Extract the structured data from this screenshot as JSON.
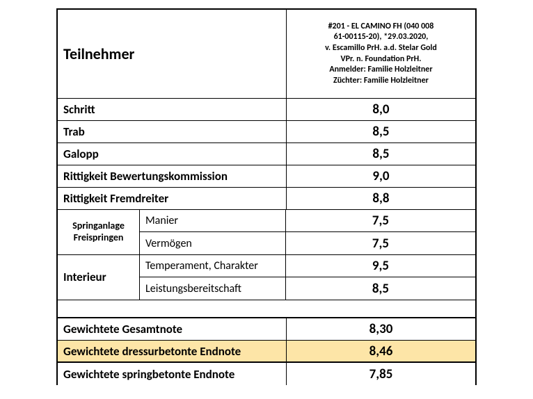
{
  "header": {
    "left": "Teilnehmer",
    "right_lines": [
      "#201 -  EL  CAMINO FH (040 008",
      "61-00115-20), *29.03.2020,",
      "v. Escamillo PrH. a.d. Stelar Gold",
      "VPr. n. Foundation PrH.",
      "Anmelder: Familie Holzleitner",
      "Züchter: Familie Holzleitner"
    ]
  },
  "rows": [
    {
      "label": "Schritt",
      "value": "8,0"
    },
    {
      "label": "Trab",
      "value": "8,5"
    },
    {
      "label": "Galopp",
      "value": "8,5"
    },
    {
      "label": "Rittigkeit Bewertungskommission",
      "value": "9,0"
    },
    {
      "label": "Rittigkeit Fremdreiter",
      "value": "8,8"
    }
  ],
  "groups": [
    {
      "label_lines": [
        "Springanlage",
        "Freispringen"
      ],
      "subs": [
        {
          "label": "Manier",
          "value": "7,5"
        },
        {
          "label": "Vermögen",
          "value": "7,5"
        }
      ]
    },
    {
      "label_lines": [
        "Interieur"
      ],
      "subs": [
        {
          "label": "Temperament, Charakter",
          "value": "9,5"
        },
        {
          "label": "Leistungsbereitschaft",
          "value": "8,5"
        }
      ]
    }
  ],
  "totals": [
    {
      "label": "Gewichtete Gesamtnote",
      "value": "8,30",
      "highlight": false
    },
    {
      "label": "Gewichtete dressurbetonte Endnote",
      "value": "8,46",
      "highlight": true
    },
    {
      "label": "Gewichtete springbetonte Endnote",
      "value": "7,85",
      "highlight": false
    }
  ],
  "colors": {
    "highlight": "#fde5a7",
    "border": "#000000",
    "background": "#ffffff"
  }
}
